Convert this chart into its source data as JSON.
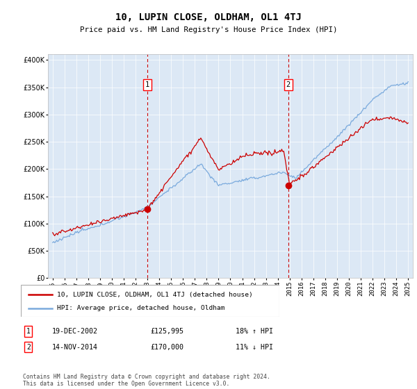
{
  "title": "10, LUPIN CLOSE, OLDHAM, OL1 4TJ",
  "subtitle": "Price paid vs. HM Land Registry's House Price Index (HPI)",
  "ylim": [
    0,
    410000
  ],
  "yticks": [
    0,
    50000,
    100000,
    150000,
    200000,
    250000,
    300000,
    350000,
    400000
  ],
  "hpi_color": "#7aaadd",
  "price_color": "#cc0000",
  "vline_color": "#cc0000",
  "bg_color": "#dce8f5",
  "sale1": {
    "date_num": 2003.0,
    "price": 125995,
    "label": "1"
  },
  "sale2": {
    "date_num": 2014.88,
    "price": 170000,
    "label": "2"
  },
  "legend_entry1": "10, LUPIN CLOSE, OLDHAM, OL1 4TJ (detached house)",
  "legend_entry2": "HPI: Average price, detached house, Oldham",
  "footer": "Contains HM Land Registry data © Crown copyright and database right 2024.\nThis data is licensed under the Open Government Licence v3.0.",
  "table_rows": [
    {
      "num": "1",
      "date": "19-DEC-2002",
      "price": "£125,995",
      "hpi": "18% ↑ HPI"
    },
    {
      "num": "2",
      "date": "14-NOV-2014",
      "price": "£170,000",
      "hpi": "11% ↓ HPI"
    }
  ]
}
